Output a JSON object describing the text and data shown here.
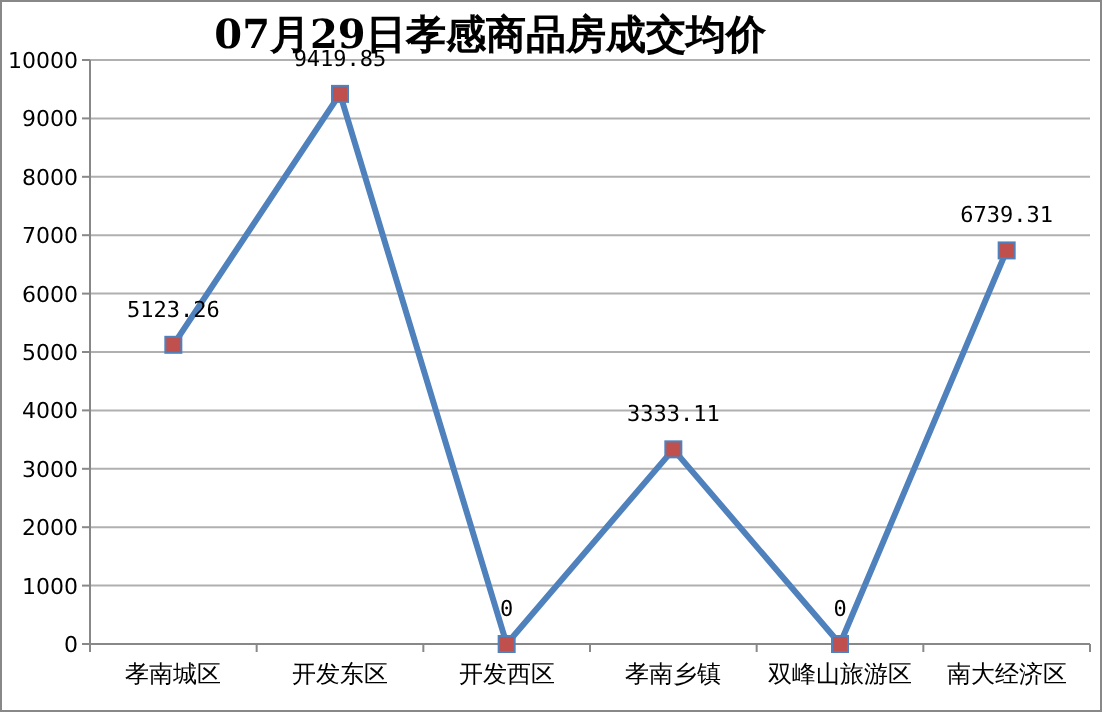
{
  "chart_data": {
    "type": "line",
    "title": "07月29日孝感商品房成交均价",
    "categories": [
      "孝南城区",
      "开发东区",
      "开发西区",
      "孝南乡镇",
      "双峰山旅游区",
      "南大经济区"
    ],
    "values": [
      5123.26,
      9419.85,
      0,
      3333.11,
      0,
      6739.31
    ],
    "color": "#4f81bd",
    "marker": "square",
    "line_style": "solid",
    "data_labels": true,
    "grid": "y",
    "ylim": [
      0,
      10000
    ],
    "yticks": [
      0,
      1000,
      2000,
      3000,
      4000,
      5000,
      6000,
      7000,
      8000,
      9000,
      10000
    ]
  }
}
